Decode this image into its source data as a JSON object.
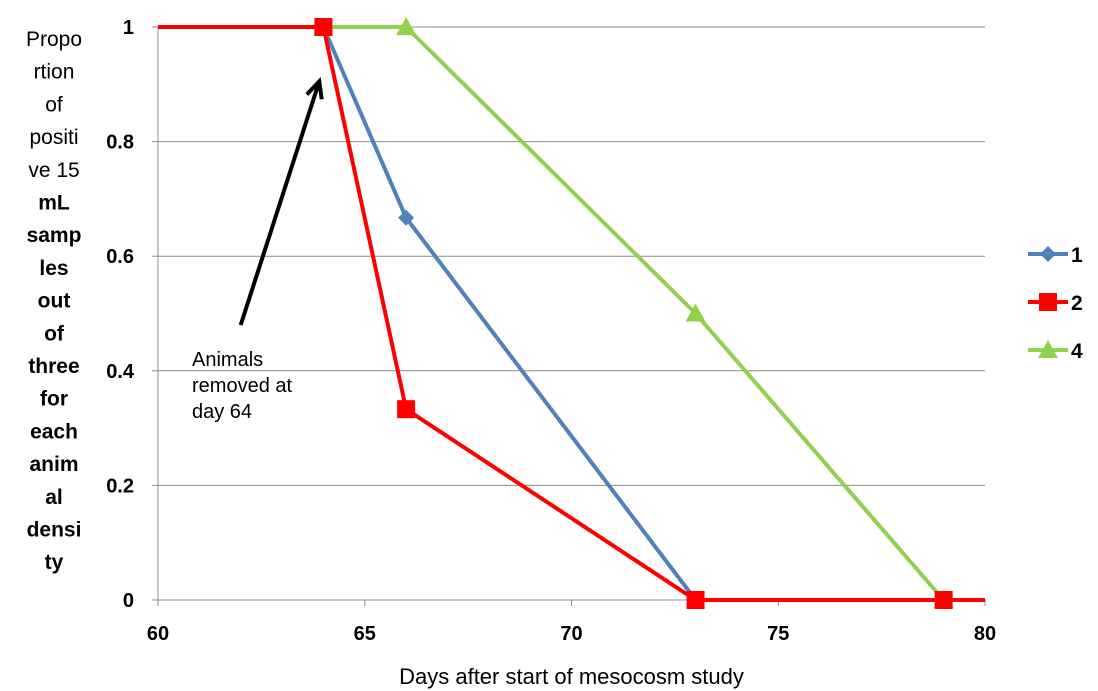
{
  "chart_data": {
    "type": "line",
    "xlabel": "Days after start of mesocosm study",
    "ylabel_lines": [
      {
        "text": "Propo",
        "bold": false
      },
      {
        "text": "rtion",
        "bold": false
      },
      {
        "text": "of",
        "bold": false
      },
      {
        "text": "positi",
        "bold": false
      },
      {
        "text": "ve 15",
        "bold": false
      },
      {
        "text": "mL",
        "bold": true
      },
      {
        "text": "samp",
        "bold": true
      },
      {
        "text": "les",
        "bold": true
      },
      {
        "text": "out",
        "bold": true
      },
      {
        "text": "of",
        "bold": true
      },
      {
        "text": "three",
        "bold": true
      },
      {
        "text": "for",
        "bold": true
      },
      {
        "text": "each",
        "bold": true
      },
      {
        "text": "anim",
        "bold": true
      },
      {
        "text": "al",
        "bold": true
      },
      {
        "text": "densi",
        "bold": true
      },
      {
        "text": "ty",
        "bold": true
      }
    ],
    "xlim": [
      60,
      80
    ],
    "ylim": [
      0,
      1
    ],
    "xticks": [
      60,
      65,
      70,
      75,
      80
    ],
    "xtick_labels": [
      "60",
      "65",
      "70",
      "75",
      "80"
    ],
    "yticks": [
      0,
      0.2,
      0.4,
      0.6,
      0.8,
      1
    ],
    "ytick_labels": [
      "0",
      "0.2",
      "0.4",
      "0.6",
      "0.8",
      "1"
    ],
    "grid": "horizontal",
    "legend_position": "right",
    "series": [
      {
        "name": "1",
        "color": "#4f81bd",
        "marker": "diamond",
        "points": [
          [
            60,
            1
          ],
          [
            64,
            1
          ],
          [
            66,
            0.667
          ],
          [
            73,
            0
          ],
          [
            79,
            0
          ],
          [
            80,
            0
          ]
        ]
      },
      {
        "name": "2",
        "color": "#ff0000",
        "marker": "square",
        "points": [
          [
            60,
            1
          ],
          [
            64,
            1
          ],
          [
            66,
            0.333
          ],
          [
            73,
            0
          ],
          [
            79,
            0
          ],
          [
            80,
            0
          ]
        ]
      },
      {
        "name": "4",
        "color": "#92d050",
        "marker": "triangle",
        "points": [
          [
            60,
            1
          ],
          [
            64,
            1
          ],
          [
            66,
            1
          ],
          [
            73,
            0.5
          ],
          [
            79,
            0
          ],
          [
            80,
            0
          ]
        ]
      }
    ],
    "annotation": {
      "lines": [
        "Animals",
        "removed at",
        "day 64"
      ],
      "arrow_from": [
        62.0,
        0.48
      ],
      "arrow_to": [
        63.9,
        0.905
      ]
    }
  }
}
